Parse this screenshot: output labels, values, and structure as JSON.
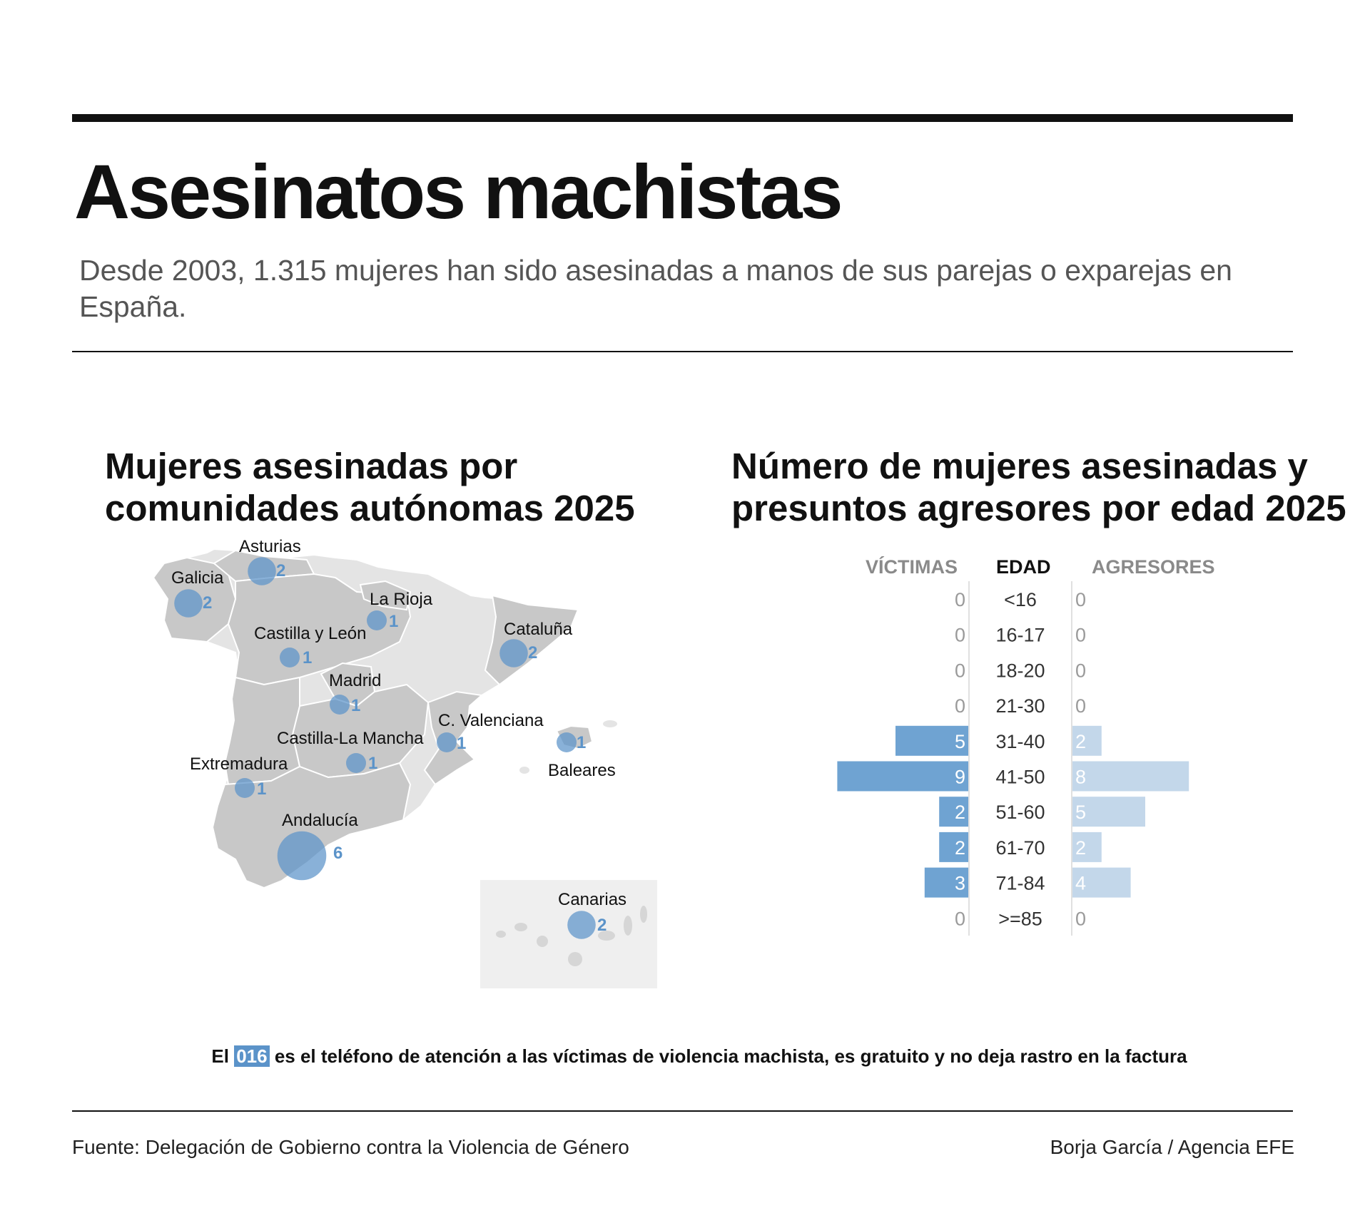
{
  "header": {
    "title": "Asesinatos machistas",
    "subtitle": "Desde 2003, 1.315 mujeres han sido asesinadas a manos de sus parejas o exparejas en España."
  },
  "map_section": {
    "title": "Mujeres asesinadas por comunidades autónomas 2025",
    "regions": [
      {
        "name": "Galicia",
        "value": 2
      },
      {
        "name": "Asturias",
        "value": 2
      },
      {
        "name": "La Rioja",
        "value": 1
      },
      {
        "name": "Castilla y León",
        "value": 1
      },
      {
        "name": "Cataluña",
        "value": 2
      },
      {
        "name": "Madrid",
        "value": 1
      },
      {
        "name": "C. Valenciana",
        "value": 1
      },
      {
        "name": "Baleares",
        "value": 1
      },
      {
        "name": "Castilla-La Mancha",
        "value": 1
      },
      {
        "name": "Extremadura",
        "value": 1
      },
      {
        "name": "Andalucía",
        "value": 6
      },
      {
        "name": "Canarias",
        "value": 2
      }
    ]
  },
  "bar_section": {
    "title": "Número de mujeres asesinadas y presuntos agresores por edad 2025"
  },
  "chart_data": {
    "type": "bar",
    "orientation": "horizontal-diverging",
    "title": "Número de mujeres asesinadas y presuntos agresores por edad 2025",
    "column_headers": {
      "left": "VÍCTIMAS",
      "center": "EDAD",
      "right": "AGRESORES"
    },
    "categories": [
      "<16",
      "16-17",
      "18-20",
      "21-30",
      "31-40",
      "41-50",
      "51-60",
      "61-70",
      "71-84",
      ">=85"
    ],
    "series": [
      {
        "name": "VÍCTIMAS",
        "values": [
          0,
          0,
          0,
          0,
          5,
          9,
          2,
          2,
          3,
          0
        ],
        "color": "#6fa3d2"
      },
      {
        "name": "AGRESORES",
        "values": [
          0,
          0,
          0,
          0,
          2,
          8,
          5,
          2,
          4,
          0
        ],
        "color": "#c3d7ea"
      }
    ]
  },
  "colors": {
    "accent": "#5b93c9",
    "victim_bar": "#6fa3d2",
    "aggressor_bar": "#c3d7ea",
    "map_region": "#c8c8c8",
    "map_other": "#e4e4e4"
  },
  "footer": {
    "note_prefix": "El",
    "note_highlight": "016",
    "note_rest": "es el teléfono de atención a las víctimas de violencia machista, es gratuito y no deja rastro en la factura",
    "source": "Fuente: Delegación de Gobierno contra la Violencia de Género",
    "credit": "Borja García / Agencia EFE"
  }
}
